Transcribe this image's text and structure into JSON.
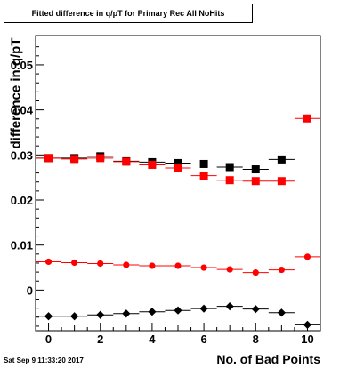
{
  "chart_data": {
    "type": "scatter",
    "title": "Fitted difference in q/pT for Primary Rec All NoHits",
    "xlabel": "No. of Bad Points",
    "ylabel": "difference in q/pT",
    "xlim": [
      -0.5,
      10.5
    ],
    "ylim": [
      -0.009,
      0.0565
    ],
    "xticks": [
      0,
      2,
      4,
      6,
      8,
      10
    ],
    "xtick_labels": [
      "0",
      "2",
      "4",
      "6",
      "8",
      "10"
    ],
    "yticks": [
      0,
      0.01,
      0.02,
      0.03,
      0.04,
      0.05
    ],
    "ytick_labels": [
      "0",
      "0.01",
      "0.02",
      "0.03",
      "0.04",
      "0.05"
    ],
    "grid": false,
    "x": [
      0,
      1,
      2,
      3,
      4,
      5,
      6,
      7,
      8,
      9,
      10
    ],
    "series": [
      {
        "color": "#000000",
        "marker": "square",
        "values": [
          0.0293,
          0.0293,
          0.0297,
          0.0286,
          0.0284,
          0.0282,
          0.028,
          0.0273,
          0.0268,
          0.029,
          null
        ]
      },
      {
        "color": "#ff0000",
        "marker": "square",
        "values": [
          0.0293,
          0.0291,
          0.0293,
          0.0285,
          0.0278,
          0.0271,
          0.0254,
          0.0244,
          0.0242,
          0.0242,
          0.0381
        ]
      },
      {
        "color": "#ff0000",
        "marker": "circle",
        "values": [
          0.0063,
          0.0061,
          0.0059,
          0.0056,
          0.0054,
          0.0054,
          0.005,
          0.0046,
          0.0039,
          0.0045,
          0.0074
        ]
      },
      {
        "color": "#000000",
        "marker": "diamond",
        "values": [
          -0.0058,
          -0.0058,
          -0.0055,
          -0.0052,
          -0.0048,
          -0.0045,
          -0.0041,
          -0.0036,
          -0.0042,
          -0.005,
          -0.0077
        ]
      }
    ]
  },
  "header": {
    "title": "Fitted difference in q/pT for Primary Rec All NoHits"
  },
  "footer": {
    "date": "Sat Sep  9 11:33:20 2017"
  }
}
